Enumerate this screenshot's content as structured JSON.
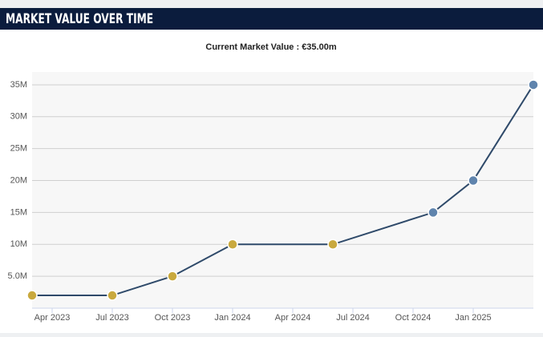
{
  "chart_data": {
    "type": "line",
    "title": "MARKET VALUE OVER TIME",
    "subtitle": "Current Market Value : €35.00m",
    "x": [
      "2023-03",
      "2023-07",
      "2023-10",
      "2024-01",
      "2024-06",
      "2024-11",
      "2025-01",
      "2025-04"
    ],
    "series": [
      {
        "color": "#2f4a6a",
        "values": [
          2,
          2,
          5,
          10,
          10,
          15,
          20,
          35
        ],
        "marker_colors": [
          "#c9a93e",
          "#c9a93e",
          "#c9a93e",
          "#c9a93e",
          "#c9a93e",
          "#5f84ad",
          "#5f84ad",
          "#5f84ad"
        ]
      }
    ],
    "xlim": [
      "2023-03",
      "2025-04"
    ],
    "xticks": [
      {
        "value": "2023-04",
        "label": "Apr 2023"
      },
      {
        "value": "2023-07",
        "label": "Jul 2023"
      },
      {
        "value": "2023-10",
        "label": "Oct 2023"
      },
      {
        "value": "2024-01",
        "label": "Jan 2024"
      },
      {
        "value": "2024-04",
        "label": "Apr 2024"
      },
      {
        "value": "2024-07",
        "label": "Jul 2024"
      },
      {
        "value": "2024-10",
        "label": "Oct 2024"
      },
      {
        "value": "2025-01",
        "label": "Jan 2025"
      }
    ],
    "ylim": [
      0,
      37
    ],
    "yticks": [
      {
        "value": 5,
        "label": "5.0M"
      },
      {
        "value": 10,
        "label": "10M"
      },
      {
        "value": 15,
        "label": "15M"
      },
      {
        "value": 20,
        "label": "20M"
      },
      {
        "value": 25,
        "label": "25M"
      },
      {
        "value": 30,
        "label": "30M"
      },
      {
        "value": 35,
        "label": "35M"
      }
    ],
    "grid": true
  }
}
